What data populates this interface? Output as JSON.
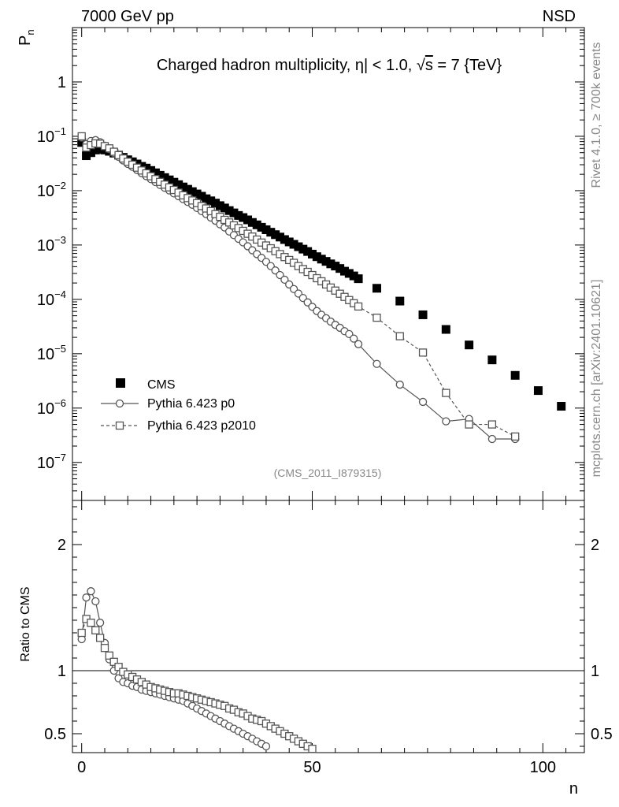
{
  "header": {
    "left": "7000 GeV pp",
    "right": "NSD"
  },
  "side_text": {
    "upper": "Rivet 4.1.0, ≥ 700k events",
    "lower": "mcplots.cern.ch [arXiv:2401.10621]"
  },
  "chart_data": [
    {
      "type": "scatter",
      "title_parts": {
        "prefix": "Charged hadron multiplicity, ",
        "eta": "η",
        "mid": "| < 1.0, ",
        "sqrt": "√",
        "s": "s",
        "suffix": " = 7 {TeV}"
      },
      "ylabel": {
        "main": "P",
        "sub": "n"
      },
      "xlabel": "n",
      "yscale": "log",
      "ylim": [
        2e-08,
        10
      ],
      "xlim": [
        -2,
        109
      ],
      "analysis_tag": "(CMS_2011_I879315)",
      "ytick_labels": [
        "1",
        "10",
        "10",
        "10",
        "10",
        "10",
        "10",
        "10"
      ],
      "ytick_exponents": [
        "",
        "−1",
        "−2",
        "−3",
        "−4",
        "−5",
        "−6",
        "−7"
      ],
      "legend": [
        "CMS",
        "Pythia 6.423 p0",
        "Pythia 6.423 p2010"
      ],
      "series": [
        {
          "name": "CMS",
          "x": [
            0,
            1,
            2,
            3,
            4,
            5,
            6,
            7,
            8,
            9,
            10,
            11,
            12,
            13,
            14,
            15,
            16,
            17,
            18,
            19,
            20,
            21,
            22,
            23,
            24,
            25,
            26,
            27,
            28,
            29,
            30,
            31,
            32,
            33,
            34,
            35,
            36,
            37,
            38,
            39,
            40,
            41,
            42,
            43,
            44,
            45,
            46,
            47,
            48,
            49,
            50,
            51,
            52,
            53,
            54,
            55,
            56,
            57,
            58,
            59,
            60,
            64,
            69,
            74,
            79,
            84,
            89,
            94,
            99,
            104
          ],
          "y": [
            0.077,
            0.044,
            0.05,
            0.056,
            0.058,
            0.056,
            0.053,
            0.049,
            0.045,
            0.041,
            0.037,
            0.034,
            0.031,
            0.028,
            0.026,
            0.0235,
            0.0213,
            0.0192,
            0.0174,
            0.0158,
            0.0143,
            0.0129,
            0.0117,
            0.0106,
            0.0096,
            0.0087,
            0.0079,
            0.0071,
            0.0065,
            0.0059,
            0.0053,
            0.0048,
            0.0043,
            0.0039,
            0.0035,
            0.0032,
            0.0029,
            0.0026,
            0.00235,
            0.00212,
            0.00191,
            0.00172,
            0.00155,
            0.0014,
            0.00126,
            0.00114,
            0.00103,
            0.00093,
            0.00084,
            0.00076,
            0.00068,
            0.00061,
            0.00055,
            0.0005,
            0.00045,
            0.00041,
            0.00037,
            0.00033,
            0.0003,
            0.00027,
            0.00024,
            0.00016,
            9.3e-05,
            5.2e-05,
            2.8e-05,
            1.45e-05,
            7.7e-06,
            4e-06,
            2.1e-06,
            1.08e-06
          ]
        },
        {
          "name": "Pythia 6.423 p0",
          "x": [
            0,
            1,
            2,
            3,
            4,
            5,
            6,
            7,
            8,
            9,
            10,
            11,
            12,
            13,
            14,
            15,
            16,
            17,
            18,
            19,
            20,
            21,
            22,
            23,
            24,
            25,
            26,
            27,
            28,
            29,
            30,
            31,
            32,
            33,
            34,
            35,
            36,
            37,
            38,
            39,
            40,
            41,
            42,
            43,
            44,
            45,
            46,
            47,
            48,
            49,
            50,
            51,
            52,
            53,
            54,
            55,
            56,
            57,
            58,
            59,
            60,
            64,
            69,
            74,
            79,
            84,
            89,
            94
          ],
          "y": [
            0.095,
            0.072,
            0.082,
            0.085,
            0.078,
            0.067,
            0.058,
            0.049,
            0.042,
            0.036,
            0.031,
            0.0275,
            0.024,
            0.021,
            0.0185,
            0.0163,
            0.0144,
            0.0127,
            0.0113,
            0.0101,
            0.0089,
            0.0079,
            0.007,
            0.0062,
            0.0055,
            0.0048,
            0.0042,
            0.0037,
            0.0032,
            0.0028,
            0.0024,
            0.0021,
            0.00177,
            0.00152,
            0.0013,
            0.00112,
            0.00095,
            0.0008,
            0.00068,
            0.00058,
            0.00049,
            0.00041,
            0.00034,
            0.00028,
            0.00023,
            0.000188,
            0.000155,
            0.000128,
            0.000106,
            8.8e-05,
            7.3e-05,
            6.1e-05,
            5.2e-05,
            4.5e-05,
            3.9e-05,
            3.4e-05,
            3e-05,
            2.6e-05,
            2.3e-05,
            1.9e-05,
            1.5e-05,
            6.5e-06,
            2.7e-06,
            1.3e-06,
            5.7e-07,
            6.3e-07,
            2.7e-07,
            2.7e-07
          ]
        },
        {
          "name": "Pythia 6.423 p2010",
          "x": [
            0,
            1,
            2,
            3,
            4,
            5,
            6,
            7,
            8,
            9,
            10,
            11,
            12,
            13,
            14,
            15,
            16,
            17,
            18,
            19,
            20,
            21,
            22,
            23,
            24,
            25,
            26,
            27,
            28,
            29,
            30,
            31,
            32,
            33,
            34,
            35,
            36,
            37,
            38,
            39,
            40,
            41,
            42,
            43,
            44,
            45,
            46,
            47,
            48,
            49,
            50,
            51,
            52,
            53,
            54,
            55,
            56,
            57,
            58,
            59,
            60,
            64,
            69,
            74,
            79,
            84,
            89,
            94
          ],
          "y": [
            0.1,
            0.062,
            0.069,
            0.074,
            0.073,
            0.066,
            0.06,
            0.052,
            0.045,
            0.039,
            0.034,
            0.03,
            0.0265,
            0.0235,
            0.0208,
            0.0184,
            0.0163,
            0.0145,
            0.0129,
            0.0115,
            0.0103,
            0.0092,
            0.0082,
            0.0073,
            0.0066,
            0.0059,
            0.0052,
            0.0047,
            0.0042,
            0.0037,
            0.0033,
            0.0029,
            0.0026,
            0.0023,
            0.00205,
            0.00182,
            0.00161,
            0.00143,
            0.00126,
            0.00111,
            0.00098,
            0.00087,
            0.00077,
            0.00068,
            0.0006,
            0.00053,
            0.00047,
            0.00041,
            0.00036,
            0.00032,
            0.00028,
            0.000245,
            0.000215,
            0.000188,
            0.000165,
            0.000145,
            0.000127,
            0.000111,
            9.7e-05,
            8.5e-05,
            7.4e-05,
            4.6e-05,
            2.1e-05,
            1.05e-05,
            1.9e-06,
            5e-07,
            5e-07,
            3e-07
          ]
        }
      ]
    },
    {
      "type": "scatter",
      "ylabel": "Ratio to CMS",
      "xlabel": "n",
      "ylim": [
        0.35,
        2.35
      ],
      "xlim": [
        -2,
        109
      ],
      "reference_line": 1,
      "ytick_labels": [
        "0.5",
        "1",
        "2"
      ],
      "xtick_labels": [
        "0",
        "50",
        "100"
      ],
      "series": [
        {
          "name": "Pythia 6.423 p0",
          "x": [
            0,
            1,
            2,
            3,
            4,
            5,
            6,
            7,
            8,
            9,
            10,
            11,
            12,
            13,
            14,
            15,
            16,
            17,
            18,
            19,
            20,
            21,
            22,
            23,
            24,
            25,
            26,
            27,
            28,
            29,
            30,
            31,
            32,
            33,
            34,
            35,
            36,
            37,
            38,
            39,
            40
          ],
          "y": [
            1.25,
            1.58,
            1.63,
            1.55,
            1.38,
            1.22,
            1.09,
            1.0,
            0.94,
            0.91,
            0.9,
            0.88,
            0.87,
            0.85,
            0.84,
            0.83,
            0.82,
            0.81,
            0.8,
            0.79,
            0.78,
            0.77,
            0.76,
            0.74,
            0.72,
            0.7,
            0.68,
            0.66,
            0.64,
            0.62,
            0.6,
            0.58,
            0.56,
            0.54,
            0.52,
            0.5,
            0.48,
            0.46,
            0.44,
            0.42,
            0.4
          ]
        },
        {
          "name": "Pythia 6.423 p2010",
          "x": [
            0,
            1,
            2,
            3,
            4,
            5,
            6,
            7,
            8,
            9,
            10,
            11,
            12,
            13,
            14,
            15,
            16,
            17,
            18,
            19,
            20,
            21,
            22,
            23,
            24,
            25,
            26,
            27,
            28,
            29,
            30,
            31,
            32,
            33,
            34,
            35,
            36,
            37,
            38,
            39,
            40,
            41,
            42,
            43,
            44,
            45,
            46,
            47,
            48,
            49,
            50
          ],
          "y": [
            1.3,
            1.41,
            1.38,
            1.32,
            1.26,
            1.18,
            1.12,
            1.07,
            1.03,
            0.99,
            0.97,
            0.95,
            0.93,
            0.91,
            0.89,
            0.87,
            0.86,
            0.85,
            0.84,
            0.83,
            0.82,
            0.82,
            0.81,
            0.8,
            0.79,
            0.78,
            0.77,
            0.76,
            0.75,
            0.74,
            0.73,
            0.72,
            0.7,
            0.69,
            0.67,
            0.66,
            0.64,
            0.62,
            0.61,
            0.6,
            0.58,
            0.56,
            0.54,
            0.52,
            0.5,
            0.48,
            0.46,
            0.44,
            0.42,
            0.4,
            0.38
          ]
        }
      ]
    }
  ]
}
